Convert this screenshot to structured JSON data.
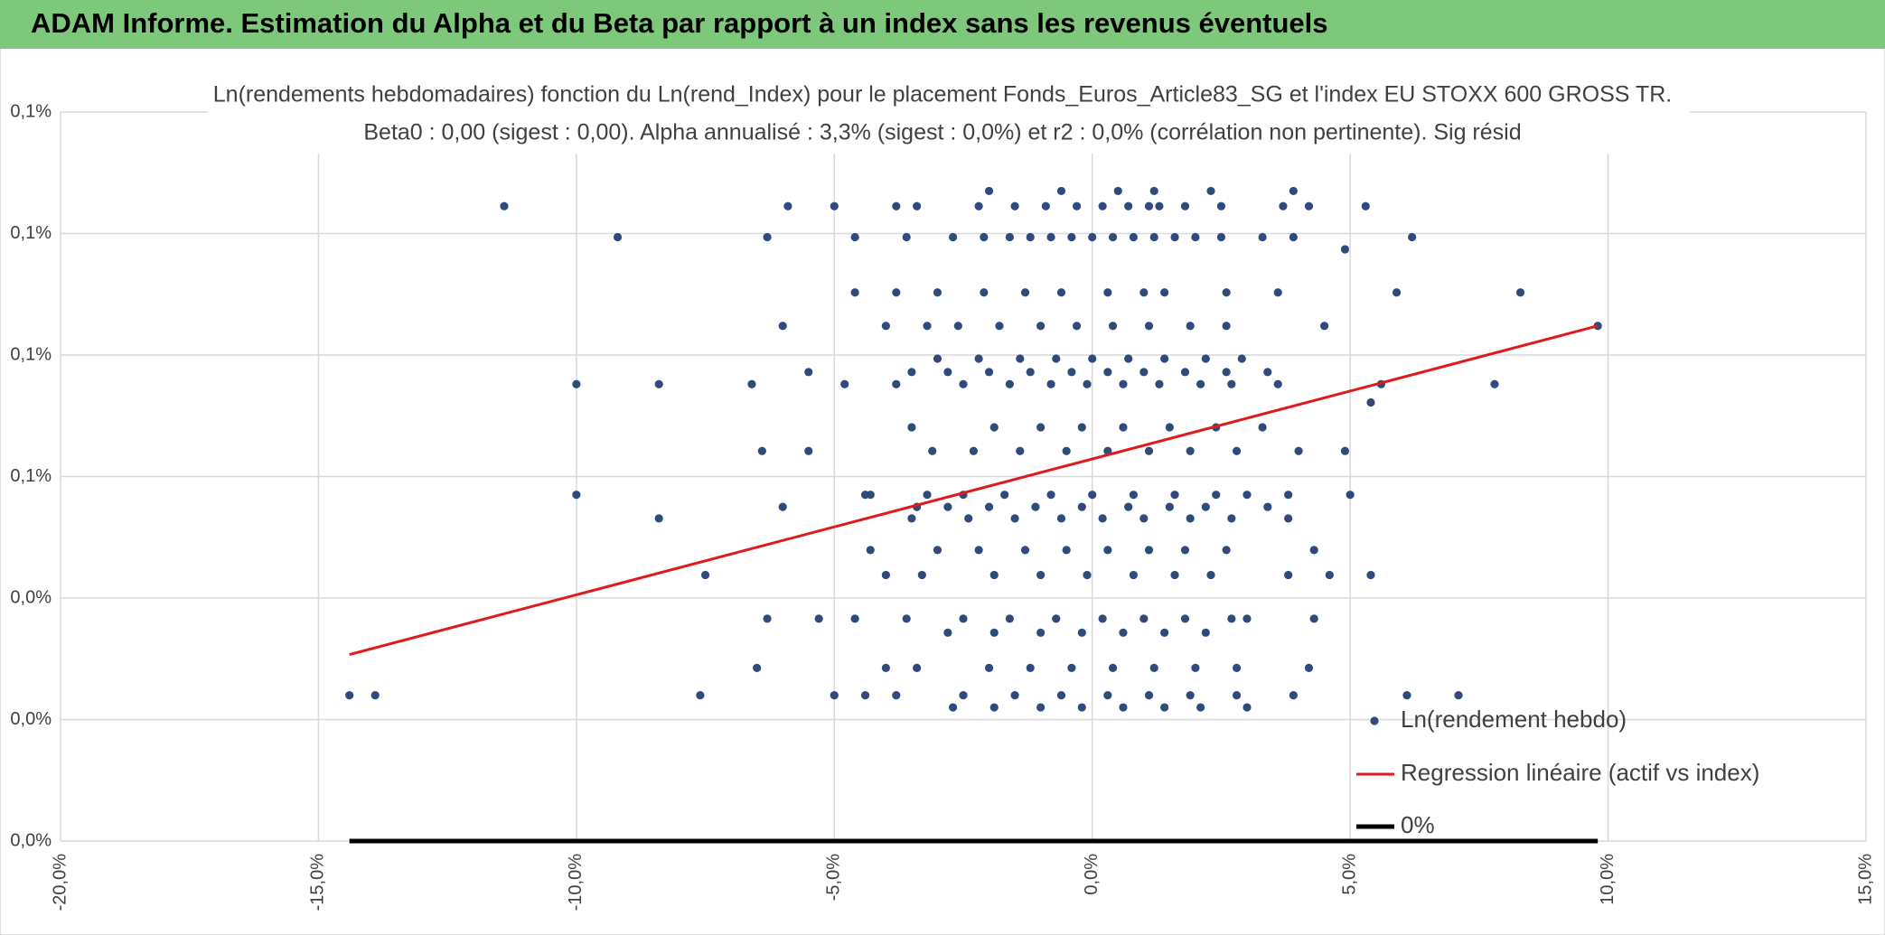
{
  "header": {
    "title": "ADAM Informe. Estimation du Alpha et du Beta par rapport à un index sans les revenus éventuels"
  },
  "chart_data": {
    "type": "scatter",
    "title": "Ln(rendements hebdomadaires) fonction du Ln(rend_Index) pour le placement Fonds_Euros_Article83_SG et l'index EU STOXX 600 GROSS TR.",
    "subtitle": "Beta0 : 0,00 (sigest : 0,00). Alpha annualisé : 3,3% (sigest : 0,0%) et r2 : 0,0% (corrélation non pertinente). Sig résid",
    "xlim": [
      -20,
      15
    ],
    "xticks": [
      {
        "value": -20,
        "label": "-20,0%"
      },
      {
        "value": -15,
        "label": "-15,0%"
      },
      {
        "value": -10,
        "label": "-10,0%"
      },
      {
        "value": -5,
        "label": "-5,0%"
      },
      {
        "value": 0,
        "label": "0,0%"
      },
      {
        "value": 5,
        "label": "5,0%"
      },
      {
        "value": 10,
        "label": "10,0%"
      },
      {
        "value": 15,
        "label": "15,0%"
      }
    ],
    "ylim": [
      0,
      0.12
    ],
    "yticks": [
      {
        "value": 0,
        "label": "0,0%"
      },
      {
        "value": 0.02,
        "label": "0,0%"
      },
      {
        "value": 0.04,
        "label": "0,0%"
      },
      {
        "value": 0.06,
        "label": "0,1%"
      },
      {
        "value": 0.08,
        "label": "0,1%"
      },
      {
        "value": 0.1,
        "label": "0,1%"
      },
      {
        "value": 0.12,
        "label": "0,1%"
      }
    ],
    "grid": true,
    "legend": "bottom-right",
    "series": [
      {
        "name": "Ln(rendement hebdo)",
        "color": "#2f4b7c",
        "kind": "scatter",
        "points": [
          [
            -11.4,
            0.1045
          ],
          [
            -9.2,
            0.0994
          ],
          [
            -14.4,
            0.024
          ],
          [
            -13.9,
            0.024
          ],
          [
            -10,
            0.0752
          ],
          [
            -10,
            0.057
          ],
          [
            -8.4,
            0.0752
          ],
          [
            -8.4,
            0.0531
          ],
          [
            -7.5,
            0.0438
          ],
          [
            -7.6,
            0.024
          ],
          [
            -6.5,
            0.0285
          ],
          [
            -6.3,
            0.0366
          ],
          [
            -6.3,
            0.0994
          ],
          [
            -5.9,
            0.1045
          ],
          [
            -6,
            0.0848
          ],
          [
            -5,
            0.1045
          ],
          [
            -4.6,
            0.0994
          ],
          [
            -4.3,
            0.057
          ],
          [
            -4.4,
            0.024
          ],
          [
            8.3,
            0.0903
          ],
          [
            9.8,
            0.0848
          ],
          [
            7.8,
            0.0752
          ],
          [
            6.2,
            0.0994
          ],
          [
            6.1,
            0.024
          ],
          [
            7.1,
            0.024
          ],
          [
            5.9,
            0.0903
          ],
          [
            5.4,
            0.0438
          ],
          [
            5,
            0.057
          ],
          [
            4.9,
            0.0974
          ],
          [
            5.3,
            0.1045
          ],
          [
            5.4,
            0.0722
          ],
          [
            -3.8,
            0.1045
          ],
          [
            -3.4,
            0.1045
          ],
          [
            -2.2,
            0.1045
          ],
          [
            -1.5,
            0.1045
          ],
          [
            -0.9,
            0.1045
          ],
          [
            -0.3,
            0.1045
          ],
          [
            0.2,
            0.1045
          ],
          [
            0.7,
            0.1045
          ],
          [
            1.1,
            0.1045
          ],
          [
            1.3,
            0.1045
          ],
          [
            1.8,
            0.1045
          ],
          [
            2.5,
            0.1045
          ],
          [
            3.7,
            0.1045
          ],
          [
            4.2,
            0.1045
          ],
          [
            -2,
            0.107
          ],
          [
            -0.6,
            0.107
          ],
          [
            0.5,
            0.107
          ],
          [
            1.2,
            0.107
          ],
          [
            2.3,
            0.107
          ],
          [
            3.9,
            0.107
          ],
          [
            -3.6,
            0.0994
          ],
          [
            -2.7,
            0.0994
          ],
          [
            -2.1,
            0.0994
          ],
          [
            -1.6,
            0.0994
          ],
          [
            -1.2,
            0.0994
          ],
          [
            -0.8,
            0.0994
          ],
          [
            -0.4,
            0.0994
          ],
          [
            0,
            0.0994
          ],
          [
            0.4,
            0.0994
          ],
          [
            0.8,
            0.0994
          ],
          [
            1.2,
            0.0994
          ],
          [
            1.6,
            0.0994
          ],
          [
            2,
            0.0994
          ],
          [
            2.5,
            0.0994
          ],
          [
            3.3,
            0.0994
          ],
          [
            3.9,
            0.0994
          ],
          [
            -4.6,
            0.0903
          ],
          [
            -3.8,
            0.0903
          ],
          [
            -3,
            0.0903
          ],
          [
            -2.1,
            0.0903
          ],
          [
            -1.3,
            0.0903
          ],
          [
            -0.6,
            0.0903
          ],
          [
            0.3,
            0.0903
          ],
          [
            1,
            0.0903
          ],
          [
            1.4,
            0.0903
          ],
          [
            2.6,
            0.0903
          ],
          [
            3.6,
            0.0903
          ],
          [
            -4,
            0.0848
          ],
          [
            -3.2,
            0.0848
          ],
          [
            -2.6,
            0.0848
          ],
          [
            -1.8,
            0.0848
          ],
          [
            -1,
            0.0848
          ],
          [
            -0.3,
            0.0848
          ],
          [
            0.4,
            0.0848
          ],
          [
            1.1,
            0.0848
          ],
          [
            1.9,
            0.0848
          ],
          [
            2.6,
            0.0848
          ],
          [
            4.5,
            0.0848
          ],
          [
            -3,
            0.0794
          ],
          [
            -2.2,
            0.0794
          ],
          [
            -1.4,
            0.0794
          ],
          [
            -0.7,
            0.0794
          ],
          [
            0,
            0.0794
          ],
          [
            0.7,
            0.0794
          ],
          [
            1.4,
            0.0794
          ],
          [
            2.2,
            0.0794
          ],
          [
            2.9,
            0.0794
          ],
          [
            -5.5,
            0.0772
          ],
          [
            -3.5,
            0.0772
          ],
          [
            -2.8,
            0.0772
          ],
          [
            -2,
            0.0772
          ],
          [
            -1.2,
            0.0772
          ],
          [
            -0.4,
            0.0772
          ],
          [
            0.3,
            0.0772
          ],
          [
            1,
            0.0772
          ],
          [
            1.8,
            0.0772
          ],
          [
            2.6,
            0.0772
          ],
          [
            3.4,
            0.0772
          ],
          [
            -6.6,
            0.0752
          ],
          [
            -4.8,
            0.0752
          ],
          [
            -3.8,
            0.0752
          ],
          [
            -2.5,
            0.0752
          ],
          [
            -1.6,
            0.0752
          ],
          [
            -0.8,
            0.0752
          ],
          [
            -0.1,
            0.0752
          ],
          [
            0.6,
            0.0752
          ],
          [
            1.3,
            0.0752
          ],
          [
            2.1,
            0.0752
          ],
          [
            2.7,
            0.0752
          ],
          [
            3.6,
            0.0752
          ],
          [
            5.6,
            0.0752
          ],
          [
            -3.5,
            0.0681
          ],
          [
            -1.9,
            0.0681
          ],
          [
            -1,
            0.0681
          ],
          [
            -0.2,
            0.0681
          ],
          [
            0.6,
            0.0681
          ],
          [
            1.5,
            0.0681
          ],
          [
            2.4,
            0.0681
          ],
          [
            3.3,
            0.0681
          ],
          [
            -6.4,
            0.0642
          ],
          [
            -5.5,
            0.0642
          ],
          [
            -3.1,
            0.0642
          ],
          [
            -2.3,
            0.0642
          ],
          [
            -1.4,
            0.0642
          ],
          [
            -0.5,
            0.0642
          ],
          [
            0.3,
            0.0642
          ],
          [
            1.1,
            0.0642
          ],
          [
            1.9,
            0.0642
          ],
          [
            2.8,
            0.0642
          ],
          [
            4,
            0.0642
          ],
          [
            4.9,
            0.0642
          ],
          [
            -4.4,
            0.057
          ],
          [
            -3.2,
            0.057
          ],
          [
            -2.5,
            0.057
          ],
          [
            -1.7,
            0.057
          ],
          [
            -0.8,
            0.057
          ],
          [
            0,
            0.057
          ],
          [
            0.8,
            0.057
          ],
          [
            1.6,
            0.057
          ],
          [
            2.4,
            0.057
          ],
          [
            3,
            0.057
          ],
          [
            3.8,
            0.057
          ],
          [
            -6,
            0.055
          ],
          [
            -3.4,
            0.055
          ],
          [
            -2.8,
            0.055
          ],
          [
            -2,
            0.055
          ],
          [
            -1.1,
            0.055
          ],
          [
            -0.2,
            0.055
          ],
          [
            0.7,
            0.055
          ],
          [
            1.5,
            0.055
          ],
          [
            2.2,
            0.055
          ],
          [
            3.4,
            0.055
          ],
          [
            -3.5,
            0.0531
          ],
          [
            -2.4,
            0.0531
          ],
          [
            -1.5,
            0.0531
          ],
          [
            -0.6,
            0.0531
          ],
          [
            0.2,
            0.0531
          ],
          [
            1,
            0.0531
          ],
          [
            1.9,
            0.0531
          ],
          [
            2.7,
            0.0531
          ],
          [
            3.8,
            0.0531
          ],
          [
            -4.3,
            0.0479
          ],
          [
            -3,
            0.0479
          ],
          [
            -2.2,
            0.0479
          ],
          [
            -1.3,
            0.0479
          ],
          [
            -0.5,
            0.0479
          ],
          [
            0.3,
            0.0479
          ],
          [
            1.1,
            0.0479
          ],
          [
            1.8,
            0.0479
          ],
          [
            2.6,
            0.0479
          ],
          [
            4.3,
            0.0479
          ],
          [
            -4,
            0.0438
          ],
          [
            -3.3,
            0.0438
          ],
          [
            -1.9,
            0.0438
          ],
          [
            -1,
            0.0438
          ],
          [
            -0.1,
            0.0438
          ],
          [
            0.8,
            0.0438
          ],
          [
            1.6,
            0.0438
          ],
          [
            2.3,
            0.0438
          ],
          [
            3.8,
            0.0438
          ],
          [
            4.6,
            0.0438
          ],
          [
            -5.3,
            0.0366
          ],
          [
            -4.6,
            0.0366
          ],
          [
            -3.6,
            0.0366
          ],
          [
            -2.5,
            0.0366
          ],
          [
            -1.6,
            0.0366
          ],
          [
            -0.7,
            0.0366
          ],
          [
            0.2,
            0.0366
          ],
          [
            1,
            0.0366
          ],
          [
            1.8,
            0.0366
          ],
          [
            2.7,
            0.0366
          ],
          [
            3,
            0.0366
          ],
          [
            4.3,
            0.0366
          ],
          [
            -2.8,
            0.0343
          ],
          [
            -1.9,
            0.0343
          ],
          [
            -1,
            0.0343
          ],
          [
            -0.2,
            0.0343
          ],
          [
            0.6,
            0.0343
          ],
          [
            1.4,
            0.0343
          ],
          [
            2.2,
            0.0343
          ],
          [
            -4,
            0.0285
          ],
          [
            -3.4,
            0.0285
          ],
          [
            -2,
            0.0285
          ],
          [
            -1.2,
            0.0285
          ],
          [
            -0.4,
            0.0285
          ],
          [
            0.4,
            0.0285
          ],
          [
            1.2,
            0.0285
          ],
          [
            2,
            0.0285
          ],
          [
            2.8,
            0.0285
          ],
          [
            4.2,
            0.0285
          ],
          [
            -5,
            0.024
          ],
          [
            -3.8,
            0.024
          ],
          [
            -2.5,
            0.024
          ],
          [
            -1.5,
            0.024
          ],
          [
            -0.6,
            0.024
          ],
          [
            0.3,
            0.024
          ],
          [
            1.1,
            0.024
          ],
          [
            1.9,
            0.024
          ],
          [
            2.8,
            0.024
          ],
          [
            3.9,
            0.024
          ],
          [
            -2.7,
            0.022
          ],
          [
            -1.9,
            0.022
          ],
          [
            -1,
            0.022
          ],
          [
            -0.2,
            0.022
          ],
          [
            0.6,
            0.022
          ],
          [
            1.4,
            0.022
          ],
          [
            2.1,
            0.022
          ],
          [
            3,
            0.022
          ]
        ]
      },
      {
        "name": "Regression linéaire (actif vs index)",
        "color": "#e0191b",
        "kind": "line",
        "points": [
          [
            -14.4,
            0.0307
          ],
          [
            9.8,
            0.0848
          ]
        ]
      },
      {
        "name": "0%",
        "color": "#000000",
        "kind": "line",
        "points": [
          [
            -14.4,
            0
          ],
          [
            9.8,
            0
          ]
        ]
      }
    ]
  }
}
